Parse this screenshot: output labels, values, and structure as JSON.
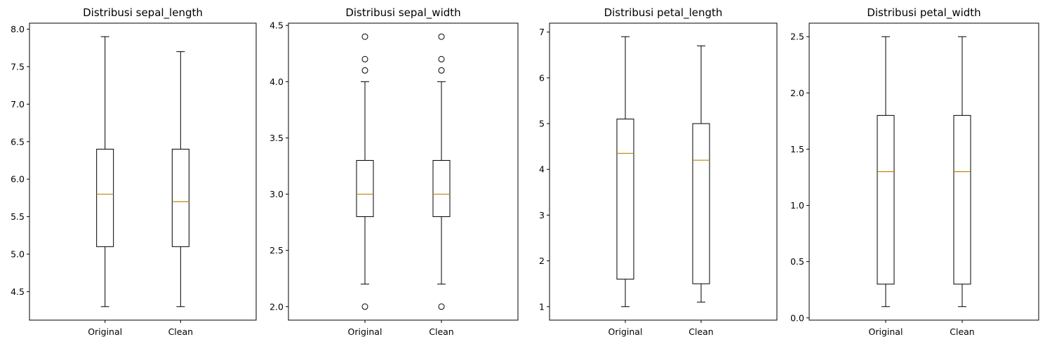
{
  "chart_data": [
    {
      "type": "box",
      "title": "Distribusi sepal_length",
      "categories": [
        "Original",
        "Clean"
      ],
      "boxes": [
        {
          "min": 4.3,
          "q1": 5.1,
          "median": 5.8,
          "q3": 6.4,
          "max": 7.9,
          "outliers": []
        },
        {
          "min": 4.3,
          "q1": 5.1,
          "median": 5.7,
          "q3": 6.4,
          "max": 7.7,
          "outliers": []
        }
      ],
      "ylim": [
        4.12,
        8.08
      ],
      "yticks": [
        4.5,
        5.0,
        5.5,
        6.0,
        6.5,
        7.0,
        7.5,
        8.0
      ],
      "ytick_labels": [
        "4.5",
        "5.0",
        "5.5",
        "6.0",
        "6.5",
        "7.0",
        "7.5",
        "8.0"
      ],
      "xlabel": "",
      "ylabel": "",
      "grid": false
    },
    {
      "type": "box",
      "title": "Distribusi sepal_width",
      "categories": [
        "Original",
        "Clean"
      ],
      "boxes": [
        {
          "min": 2.2,
          "q1": 2.8,
          "median": 3.0,
          "q3": 3.3,
          "max": 4.0,
          "outliers": [
            4.4,
            4.2,
            4.1,
            2.0
          ]
        },
        {
          "min": 2.2,
          "q1": 2.8,
          "median": 3.0,
          "q3": 3.3,
          "max": 4.0,
          "outliers": [
            4.4,
            4.2,
            4.1,
            2.0
          ]
        }
      ],
      "ylim": [
        1.88,
        4.52
      ],
      "yticks": [
        2.0,
        2.5,
        3.0,
        3.5,
        4.0,
        4.5
      ],
      "ytick_labels": [
        "2.0",
        "2.5",
        "3.0",
        "3.5",
        "4.0",
        "4.5"
      ],
      "xlabel": "",
      "ylabel": "",
      "grid": false
    },
    {
      "type": "box",
      "title": "Distribusi petal_length",
      "categories": [
        "Original",
        "Clean"
      ],
      "boxes": [
        {
          "min": 1.0,
          "q1": 1.6,
          "median": 4.35,
          "q3": 5.1,
          "max": 6.9,
          "outliers": []
        },
        {
          "min": 1.1,
          "q1": 1.5,
          "median": 4.2,
          "q3": 5.0,
          "max": 6.7,
          "outliers": []
        }
      ],
      "ylim": [
        0.705,
        7.195
      ],
      "yticks": [
        1,
        2,
        3,
        4,
        5,
        6,
        7
      ],
      "ytick_labels": [
        "1",
        "2",
        "3",
        "4",
        "5",
        "6",
        "7"
      ],
      "xlabel": "",
      "ylabel": "",
      "grid": false
    },
    {
      "type": "box",
      "title": "Distribusi petal_width",
      "categories": [
        "Original",
        "Clean"
      ],
      "boxes": [
        {
          "min": 0.1,
          "q1": 0.3,
          "median": 1.3,
          "q3": 1.8,
          "max": 2.5,
          "outliers": []
        },
        {
          "min": 0.1,
          "q1": 0.3,
          "median": 1.3,
          "q3": 1.8,
          "max": 2.5,
          "outliers": []
        }
      ],
      "ylim": [
        -0.02,
        2.62
      ],
      "yticks": [
        0.0,
        0.5,
        1.0,
        1.5,
        2.0,
        2.5
      ],
      "ytick_labels": [
        "0.0",
        "0.5",
        "1.0",
        "1.5",
        "2.0",
        "2.5"
      ],
      "xlabel": "",
      "ylabel": "",
      "grid": false
    }
  ],
  "colors": {
    "box": "#000000",
    "median": "#b8860b",
    "background": "#ffffff"
  }
}
